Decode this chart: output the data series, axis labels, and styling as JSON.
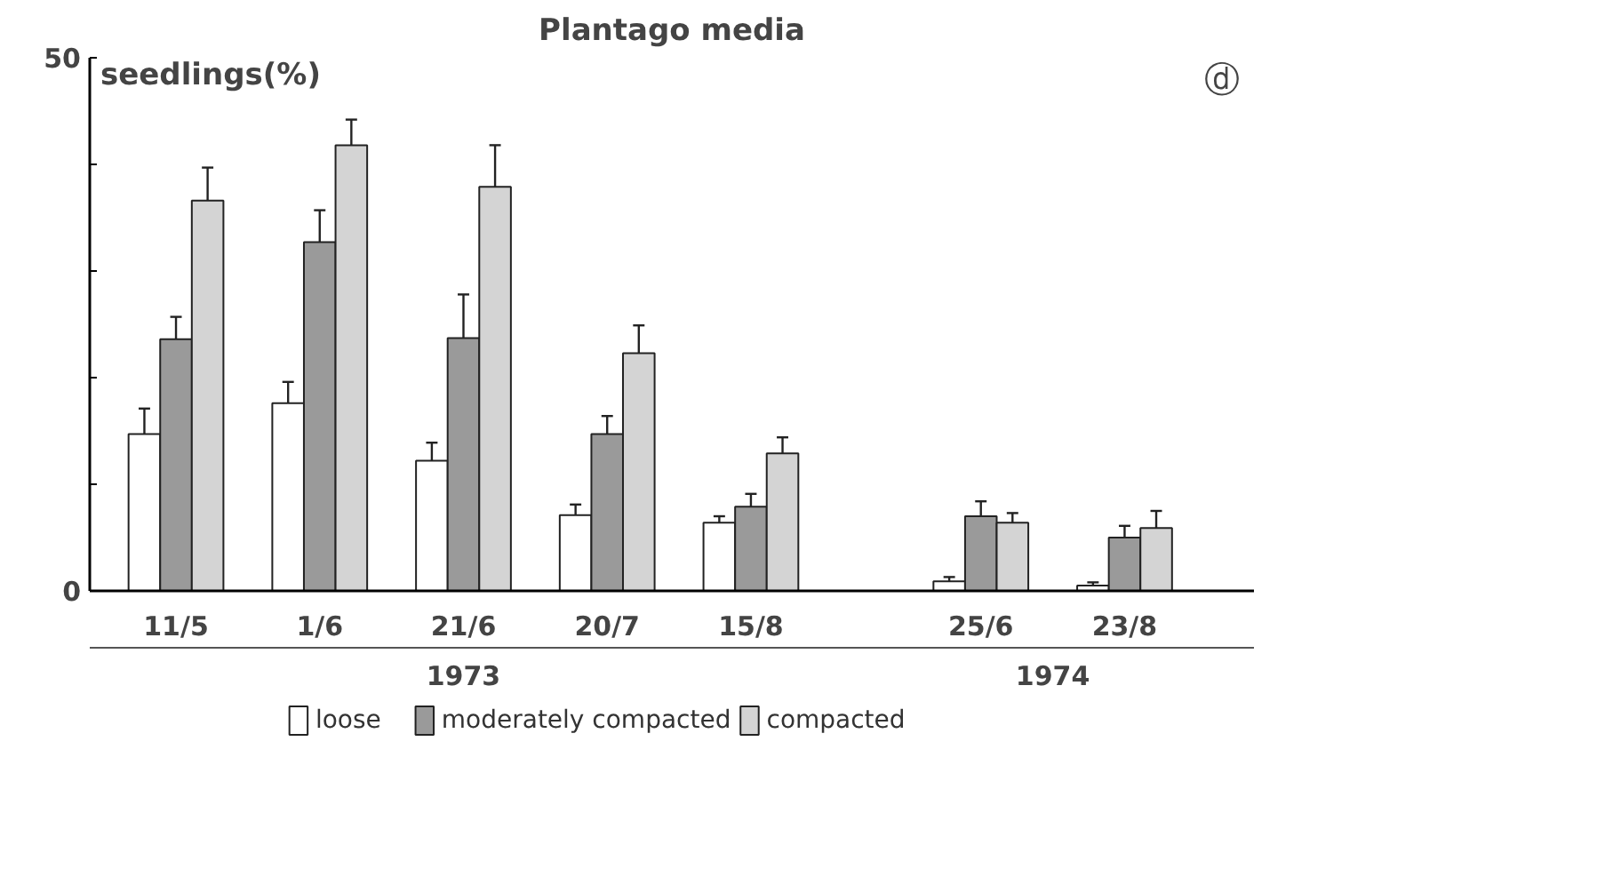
{
  "chart_data": {
    "type": "bar",
    "title": "Plantago media",
    "ylabel": "seedlings(%)",
    "categories": [
      "11/5",
      "1/6",
      "21/6",
      "20/7",
      "15/8",
      "25/6",
      "23/8"
    ],
    "series": [
      {
        "name": "loose",
        "color": "#ffffff",
        "values": [
          14.7,
          17.6,
          12.2,
          7.1,
          6.4,
          0.9,
          0.5
        ],
        "errors": [
          [
            14.7,
            17.1
          ],
          [
            17.6,
            19.6
          ],
          [
            12.2,
            13.9
          ],
          [
            7.1,
            8.1
          ],
          [
            6.4,
            7.0
          ],
          [
            0.9,
            1.3
          ],
          [
            0.5,
            0.8
          ]
        ]
      },
      {
        "name": "moderately compacted",
        "color": "#9a9a9a",
        "values": [
          23.6,
          32.7,
          23.7,
          14.7,
          7.9,
          7.0,
          5.0
        ],
        "errors": [
          [
            23.6,
            25.7
          ],
          [
            32.7,
            35.7
          ],
          [
            23.7,
            27.8
          ],
          [
            14.7,
            16.4
          ],
          [
            7.9,
            9.1
          ],
          [
            7.0,
            8.4
          ],
          [
            5.0,
            6.1
          ]
        ]
      },
      {
        "name": "compacted",
        "color": "#d4d4d4",
        "values": [
          36.6,
          41.8,
          37.9,
          22.3,
          12.9,
          6.4,
          5.9
        ],
        "errors": [
          [
            36.6,
            39.7
          ],
          [
            41.8,
            44.2
          ],
          [
            37.9,
            41.8
          ],
          [
            22.3,
            24.9
          ],
          [
            12.9,
            14.4
          ],
          [
            6.4,
            7.3
          ],
          [
            5.9,
            7.5
          ]
        ]
      }
    ],
    "ylim": [
      0,
      50
    ],
    "yticks": [
      0,
      {
        "value": 10,
        "label": null
      },
      {
        "value": 20,
        "label": null
      },
      {
        "value": 30,
        "label": null
      },
      {
        "value": 40,
        "label": null
      },
      50
    ],
    "annotations": [
      "1973",
      "1974",
      "ⓓ"
    ],
    "grid": false,
    "legend": "bottom"
  }
}
